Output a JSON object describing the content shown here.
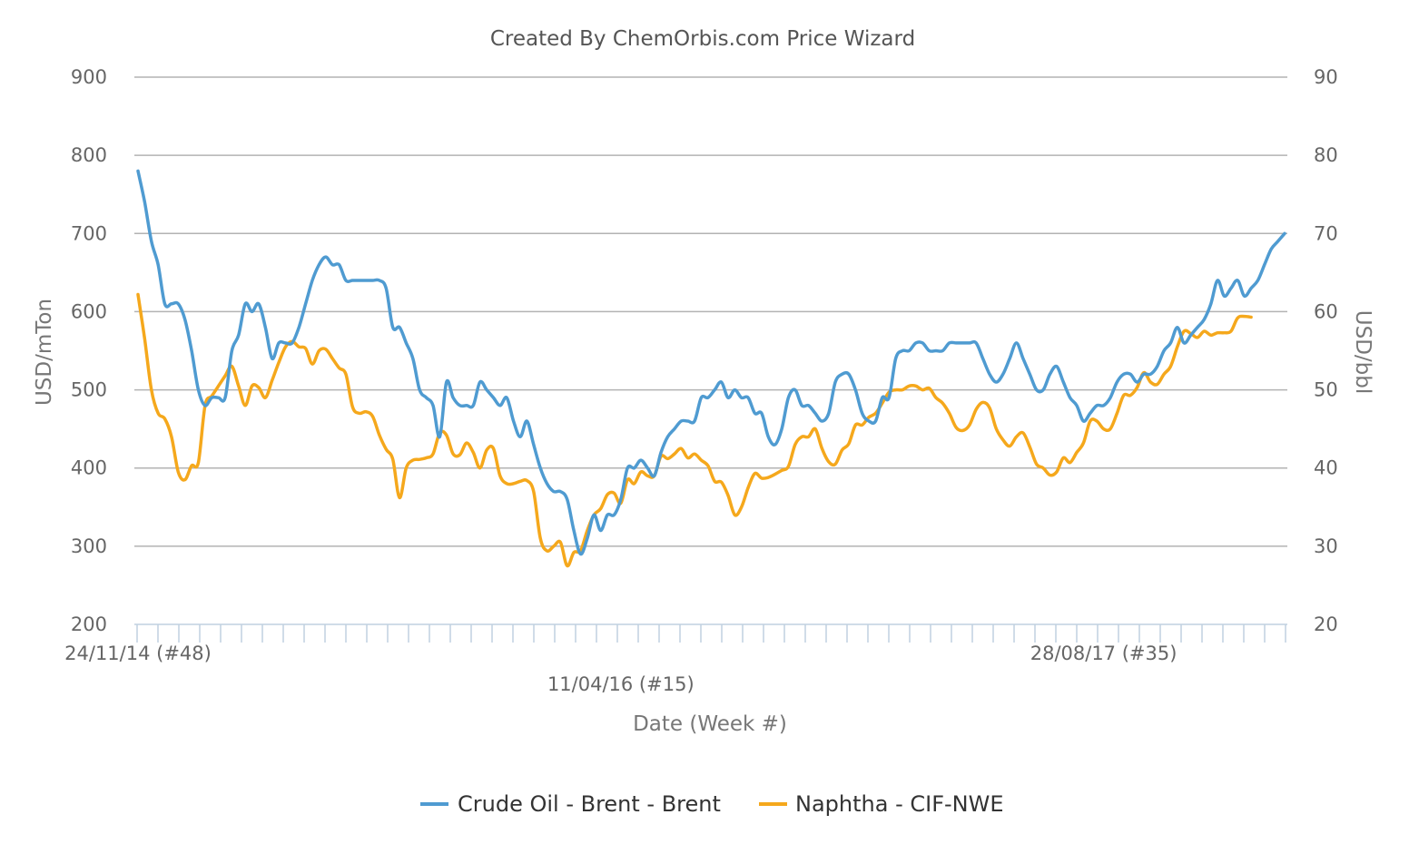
{
  "chart_data": {
    "type": "line",
    "title": "Created By ChemOrbis.com Price Wizard",
    "xlabel": "Date (Week #)",
    "ylabel_left": "USD/mTon",
    "ylabel_right": "USD/bbl",
    "ylim_left": [
      200,
      900
    ],
    "ylim_right": [
      20,
      90
    ],
    "yticks_left": [
      900,
      800,
      700,
      600,
      500,
      400,
      300,
      200
    ],
    "yticks_right": [
      90,
      80,
      70,
      60,
      50,
      40,
      30,
      20
    ],
    "x_tick_labels": [
      {
        "label": "24/11/14 (#48)",
        "index": 0
      },
      {
        "label": "11/04/16 (#15)",
        "index": 72
      },
      {
        "label": "28/08/17 (#35)",
        "index": 144
      }
    ],
    "grid": true,
    "legend_position": "bottom",
    "colors": {
      "crude": "#4f9bd1",
      "naphtha": "#f5a81c",
      "grid": "#b3b3b3",
      "axis": "#c0d0e0"
    },
    "series": [
      {
        "name": "Crude Oil - Brent - Brent",
        "axis": "right",
        "color": "#4f9bd1",
        "values": [
          78,
          74,
          69,
          66,
          61,
          61,
          61,
          59,
          55,
          50,
          48,
          49,
          49,
          49,
          55,
          57,
          61,
          60,
          61,
          58,
          54,
          56,
          56,
          56,
          58,
          61,
          64,
          66,
          67,
          66,
          66,
          64,
          64,
          64,
          64,
          64,
          64,
          63,
          58,
          58,
          56,
          54,
          50,
          49,
          48,
          44,
          51,
          49,
          48,
          48,
          48,
          51,
          50,
          49,
          48,
          49,
          46,
          44,
          46,
          43,
          40,
          38,
          37,
          37,
          36,
          32,
          29,
          31,
          34,
          32,
          34,
          34,
          36,
          40,
          40,
          41,
          40,
          39,
          42,
          44,
          45,
          46,
          46,
          46,
          49,
          49,
          50,
          51,
          49,
          50,
          49,
          49,
          47,
          47,
          44,
          43,
          45,
          49,
          50,
          48,
          48,
          47,
          46,
          47,
          51,
          52,
          52,
          50,
          47,
          46,
          46,
          49,
          49,
          54,
          55,
          55,
          56,
          56,
          55,
          55,
          55,
          56,
          56,
          56,
          56,
          56,
          54,
          52,
          51,
          52,
          54,
          56,
          54,
          52,
          50,
          50,
          52,
          53,
          51,
          49,
          48,
          46,
          47,
          48,
          48,
          49,
          51,
          52,
          52,
          51,
          52,
          52,
          53,
          55,
          56,
          58,
          56,
          57,
          58,
          59,
          61,
          64,
          62,
          63,
          64,
          62,
          63,
          64,
          66,
          68,
          69,
          70
        ]
      },
      {
        "name": "Naphtha - CIF-NWE",
        "axis": "left",
        "color": "#f5a81c",
        "values": [
          622,
          565,
          500,
          470,
          463,
          440,
          395,
          385,
          403,
          407,
          480,
          492,
          505,
          518,
          530,
          505,
          480,
          505,
          503,
          490,
          512,
          535,
          555,
          562,
          555,
          553,
          533,
          550,
          552,
          540,
          528,
          520,
          478,
          470,
          472,
          466,
          442,
          424,
          411,
          362,
          400,
          410,
          411,
          413,
          418,
          445,
          442,
          418,
          417,
          432,
          420,
          400,
          423,
          425,
          390,
          380,
          380,
          383,
          384,
          370,
          310,
          294,
          300,
          305,
          275,
          292,
          294,
          320,
          340,
          348,
          366,
          368,
          355,
          385,
          380,
          395,
          390,
          390,
          415,
          412,
          418,
          425,
          413,
          418,
          410,
          403,
          383,
          382,
          365,
          340,
          350,
          375,
          393,
          387,
          388,
          392,
          397,
          402,
          430,
          440,
          440,
          450,
          425,
          408,
          405,
          423,
          431,
          455,
          455,
          465,
          470,
          483,
          497,
          500,
          500,
          505,
          505,
          500,
          502,
          490,
          483,
          470,
          452,
          448,
          455,
          475,
          484,
          477,
          450,
          436,
          428,
          440,
          445,
          427,
          405,
          400,
          391,
          395,
          413,
          407,
          420,
          432,
          460,
          460,
          450,
          450,
          470,
          493,
          493,
          503,
          522,
          510,
          507,
          520,
          530,
          555,
          575,
          572,
          567,
          575,
          570,
          573,
          573,
          575,
          592,
          594,
          593
        ]
      }
    ]
  },
  "legend": {
    "crude_label": "Crude Oil - Brent - Brent",
    "naphtha_label": "Naphtha - CIF-NWE"
  }
}
